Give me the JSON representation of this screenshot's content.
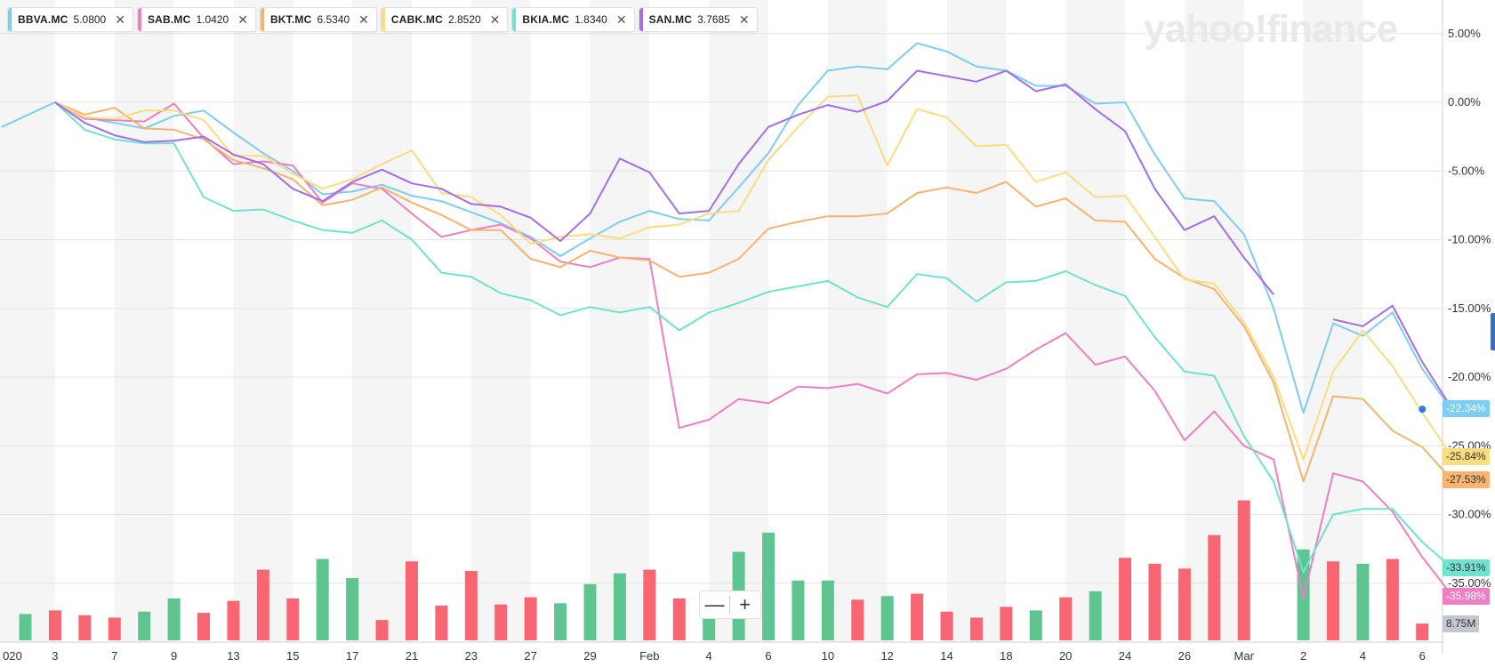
{
  "watermark": "yahoo!finance",
  "legend": [
    {
      "symbol": "BBVA.MC",
      "value": "5.0800",
      "color": "#7ecdf2"
    },
    {
      "symbol": "SAB.MC",
      "value": "1.0420",
      "color": "#ee7fc4"
    },
    {
      "symbol": "BKT.MC",
      "value": "6.5340",
      "color": "#f5b470"
    },
    {
      "symbol": "CABK.MC",
      "value": "2.8520",
      "color": "#fbdc7f"
    },
    {
      "symbol": "BKIA.MC",
      "value": "1.8340",
      "color": "#71e2cf"
    },
    {
      "symbol": "SAN.MC",
      "value": "3.7685",
      "color": "#a46ee8"
    }
  ],
  "end_flags": [
    {
      "label": "-22.34%",
      "bg": "#7ecdf2",
      "fg": "#ffffff",
      "y_value": -22.34
    },
    {
      "label": "-25.84%",
      "bg": "#fbdc7f",
      "fg": "#333333",
      "y_value": -25.84
    },
    {
      "label": "-27.53%",
      "bg": "#f5b470",
      "fg": "#333333",
      "y_value": -27.53
    },
    {
      "label": "-33.91%",
      "bg": "#71e2cf",
      "fg": "#333333",
      "y_value": -33.91
    },
    {
      "label": "-35.98%",
      "bg": "#ee7fc4",
      "fg": "#ffffff",
      "y_value": -35.98
    },
    {
      "label": "8.75M",
      "bg": "#c3c7ce",
      "fg": "#333333",
      "y_value": -38.0
    }
  ],
  "zoom": {
    "minus": "—",
    "plus": "+"
  },
  "chart_data": {
    "type": "line",
    "y_unit": "percent change",
    "ylim": [
      -40.0,
      7.0
    ],
    "y_ticks": [
      {
        "value": 5,
        "label": "5.00%"
      },
      {
        "value": 0,
        "label": "0.00%"
      },
      {
        "value": -5,
        "label": "-5.00%"
      },
      {
        "value": -10,
        "label": "-10.00%"
      },
      {
        "value": -15,
        "label": "-15.00%"
      },
      {
        "value": -20,
        "label": "-20.00%"
      },
      {
        "value": -25,
        "label": "-25.00%"
      },
      {
        "value": -30,
        "label": "-30.00%"
      },
      {
        "value": -35,
        "label": "-35.00%"
      }
    ],
    "x_ticks": [
      {
        "index": 1,
        "label": "020"
      },
      {
        "index": 2,
        "label": "3"
      },
      {
        "index": 4,
        "label": "7"
      },
      {
        "index": 6,
        "label": "9"
      },
      {
        "index": 8,
        "label": "13"
      },
      {
        "index": 10,
        "label": "15"
      },
      {
        "index": 12,
        "label": "17"
      },
      {
        "index": 14,
        "label": "21"
      },
      {
        "index": 16,
        "label": "23"
      },
      {
        "index": 18,
        "label": "27"
      },
      {
        "index": 20,
        "label": "29"
      },
      {
        "index": 22,
        "label": "Feb"
      },
      {
        "index": 24,
        "label": "4"
      },
      {
        "index": 26,
        "label": "6"
      },
      {
        "index": 28,
        "label": "10"
      },
      {
        "index": 30,
        "label": "12"
      },
      {
        "index": 32,
        "label": "14"
      },
      {
        "index": 34,
        "label": "18"
      },
      {
        "index": 36,
        "label": "20"
      },
      {
        "index": 38,
        "label": "24"
      },
      {
        "index": 40,
        "label": "26"
      },
      {
        "index": 42,
        "label": "Mar"
      },
      {
        "index": 44,
        "label": "2"
      },
      {
        "index": 46,
        "label": "4"
      },
      {
        "index": 48,
        "label": "6"
      }
    ],
    "series": [
      {
        "name": "BBVA.MC",
        "color": "#7ecdf2",
        "values": [
          -1.8,
          0.0,
          -1.1,
          -1.5,
          -1.9,
          -1.0,
          -0.6,
          -2.2,
          -3.7,
          -5.0,
          -6.7,
          -6.5,
          -6.0,
          -6.8,
          -7.2,
          -8.0,
          -8.8,
          -9.8,
          -11.2,
          -9.9,
          -8.7,
          -7.9,
          -8.5,
          -8.6,
          -6.2,
          -3.7,
          -0.2,
          2.3,
          2.6,
          2.4,
          4.3,
          3.7,
          2.6,
          2.3,
          1.2,
          1.2,
          -0.1,
          0.0,
          -3.8,
          -7.0,
          -7.2,
          -9.6,
          -15.0,
          -22.6,
          -16.1,
          -17.0,
          -15.3,
          -19.4,
          -22.4
        ]
      },
      {
        "name": "SAB.MC",
        "color": "#ee7fc4",
        "values": [
          null,
          0.0,
          -1.2,
          -1.3,
          -1.4,
          -0.1,
          -2.6,
          -4.5,
          -4.3,
          -4.6,
          -7.3,
          -5.9,
          -6.3,
          -8.1,
          -9.8,
          -9.3,
          -8.9,
          -9.9,
          -11.6,
          -12.0,
          -11.3,
          -11.4,
          -23.7,
          -23.1,
          -21.6,
          -21.9,
          -20.7,
          -20.8,
          -20.5,
          -21.2,
          -19.8,
          -19.7,
          -20.2,
          -19.4,
          -18.0,
          -16.8,
          -19.1,
          -18.5,
          -21.0,
          -24.6,
          -22.5,
          -25.0,
          -26.0,
          -36.1,
          -27.0,
          -27.6,
          -29.8,
          -33.1,
          -35.9
        ]
      },
      {
        "name": "BKT.MC",
        "color": "#f5b470",
        "values": [
          null,
          0.0,
          -0.9,
          -0.4,
          -1.9,
          -2.0,
          -2.7,
          -4.2,
          -4.8,
          -5.6,
          -7.5,
          -7.1,
          -6.2,
          -7.3,
          -8.2,
          -9.3,
          -9.3,
          -11.4,
          -12.0,
          -10.8,
          -11.3,
          -11.5,
          -12.7,
          -12.4,
          -11.4,
          -9.2,
          -8.7,
          -8.3,
          -8.3,
          -8.1,
          -6.6,
          -6.2,
          -6.6,
          -5.8,
          -7.6,
          -7.0,
          -8.6,
          -8.7,
          -11.4,
          -12.8,
          -13.6,
          -16.3,
          -20.4,
          -27.6,
          -21.4,
          -21.6,
          -23.9,
          -25.1,
          -27.5
        ]
      },
      {
        "name": "CABK.MC",
        "color": "#fbdc7f",
        "values": [
          null,
          0.0,
          -1.1,
          -1.2,
          -0.6,
          -0.6,
          -1.3,
          -3.9,
          -3.9,
          -5.2,
          -6.3,
          -5.6,
          -4.5,
          -3.5,
          -6.6,
          -6.9,
          -8.2,
          -10.3,
          -9.8,
          -9.6,
          -9.9,
          -9.1,
          -8.9,
          -8.1,
          -7.9,
          -4.2,
          -1.8,
          0.4,
          0.5,
          -4.6,
          -0.5,
          -1.1,
          -3.2,
          -3.1,
          -5.8,
          -5.1,
          -6.9,
          -6.8,
          -9.8,
          -12.9,
          -13.2,
          -16.0,
          -20.0,
          -26.0,
          -19.6,
          -16.6,
          -19.2,
          -22.6,
          -25.8
        ]
      },
      {
        "name": "BKIA.MC",
        "color": "#71e2cf",
        "values": [
          null,
          0.0,
          -2.0,
          -2.7,
          -3.0,
          -3.0,
          -6.9,
          -7.9,
          -7.8,
          -8.6,
          -9.3,
          -9.5,
          -8.6,
          -10.0,
          -12.4,
          -12.7,
          -13.9,
          -14.4,
          -15.5,
          -14.9,
          -15.3,
          -14.9,
          -16.6,
          -15.3,
          -14.6,
          -13.8,
          -13.4,
          -13.0,
          -14.2,
          -14.9,
          -12.5,
          -12.8,
          -14.5,
          -13.1,
          -13.0,
          -12.3,
          -13.3,
          -14.1,
          -17.1,
          -19.6,
          -19.9,
          -24.3,
          -27.6,
          -34.2,
          -30.0,
          -29.6,
          -29.6,
          -32.0,
          -33.9
        ]
      },
      {
        "name": "SAN.MC",
        "color": "#a46ee8",
        "values": [
          null,
          0.0,
          -1.5,
          -2.4,
          -2.9,
          -2.8,
          -2.5,
          -3.8,
          -4.5,
          -6.3,
          -7.2,
          -5.8,
          -4.9,
          -5.9,
          -6.3,
          -7.4,
          -7.6,
          -8.4,
          -10.1,
          -8.1,
          -4.1,
          -5.1,
          -8.1,
          -7.9,
          -4.5,
          -1.8,
          -0.9,
          -0.2,
          -0.7,
          0.1,
          2.3,
          1.9,
          1.5,
          2.3,
          0.8,
          1.3,
          -0.5,
          -2.1,
          -6.3,
          -9.3,
          -8.3,
          -11.3,
          -14.0,
          null,
          -15.8,
          -16.3,
          -14.8,
          -18.9,
          -22.3
        ]
      }
    ],
    "volume": {
      "unit": "shares",
      "bars": [
        {
          "index": 1,
          "value": 1.1,
          "color": "#5ec590"
        },
        {
          "index": 2,
          "value": 1.25,
          "color": "#f76672"
        },
        {
          "index": 3,
          "value": 1.05,
          "color": "#f76672"
        },
        {
          "index": 4,
          "value": 0.95,
          "color": "#f76672"
        },
        {
          "index": 5,
          "value": 1.2,
          "color": "#5ec590"
        },
        {
          "index": 6,
          "value": 1.75,
          "color": "#5ec590"
        },
        {
          "index": 7,
          "value": 1.15,
          "color": "#f76672"
        },
        {
          "index": 8,
          "value": 1.65,
          "color": "#f76672"
        },
        {
          "index": 9,
          "value": 2.95,
          "color": "#f76672"
        },
        {
          "index": 10,
          "value": 1.75,
          "color": "#f76672"
        },
        {
          "index": 11,
          "value": 3.4,
          "color": "#5ec590"
        },
        {
          "index": 12,
          "value": 2.6,
          "color": "#5ec590"
        },
        {
          "index": 13,
          "value": 0.85,
          "color": "#f76672"
        },
        {
          "index": 14,
          "value": 3.3,
          "color": "#f76672"
        },
        {
          "index": 15,
          "value": 1.45,
          "color": "#f76672"
        },
        {
          "index": 16,
          "value": 2.9,
          "color": "#f76672"
        },
        {
          "index": 17,
          "value": 1.5,
          "color": "#f76672"
        },
        {
          "index": 18,
          "value": 1.8,
          "color": "#f76672"
        },
        {
          "index": 19,
          "value": 1.55,
          "color": "#5ec590"
        },
        {
          "index": 20,
          "value": 2.35,
          "color": "#5ec590"
        },
        {
          "index": 21,
          "value": 2.8,
          "color": "#5ec590"
        },
        {
          "index": 22,
          "value": 2.95,
          "color": "#f76672"
        },
        {
          "index": 23,
          "value": 1.75,
          "color": "#f76672"
        },
        {
          "index": 24,
          "value": 1.5,
          "color": "#5ec590"
        },
        {
          "index": 25,
          "value": 3.7,
          "color": "#5ec590"
        },
        {
          "index": 26,
          "value": 4.5,
          "color": "#5ec590"
        },
        {
          "index": 27,
          "value": 2.5,
          "color": "#5ec590"
        },
        {
          "index": 28,
          "value": 2.5,
          "color": "#5ec590"
        },
        {
          "index": 29,
          "value": 1.7,
          "color": "#f76672"
        },
        {
          "index": 30,
          "value": 1.85,
          "color": "#5ec590"
        },
        {
          "index": 31,
          "value": 1.95,
          "color": "#f76672"
        },
        {
          "index": 32,
          "value": 1.2,
          "color": "#f76672"
        },
        {
          "index": 33,
          "value": 0.95,
          "color": "#f76672"
        },
        {
          "index": 34,
          "value": 1.4,
          "color": "#f76672"
        },
        {
          "index": 35,
          "value": 1.25,
          "color": "#5ec590"
        },
        {
          "index": 36,
          "value": 1.8,
          "color": "#f76672"
        },
        {
          "index": 37,
          "value": 2.05,
          "color": "#5ec590"
        },
        {
          "index": 38,
          "value": 3.45,
          "color": "#f76672"
        },
        {
          "index": 39,
          "value": 3.2,
          "color": "#f76672"
        },
        {
          "index": 40,
          "value": 3.0,
          "color": "#f76672"
        },
        {
          "index": 41,
          "value": 4.4,
          "color": "#f76672"
        },
        {
          "index": 42,
          "value": 5.85,
          "color": "#f76672"
        },
        {
          "index": 44,
          "value": 3.8,
          "color": "#5ec590"
        },
        {
          "index": 45,
          "value": 3.3,
          "color": "#f76672"
        },
        {
          "index": 46,
          "value": 3.2,
          "color": "#5ec590"
        },
        {
          "index": 47,
          "value": 3.4,
          "color": "#f76672"
        },
        {
          "index": 48,
          "value": 0.7,
          "color": "#f76672"
        }
      ]
    },
    "last_point_marker": {
      "index": 48,
      "value": -22.34,
      "color": "#2f7be6"
    }
  }
}
